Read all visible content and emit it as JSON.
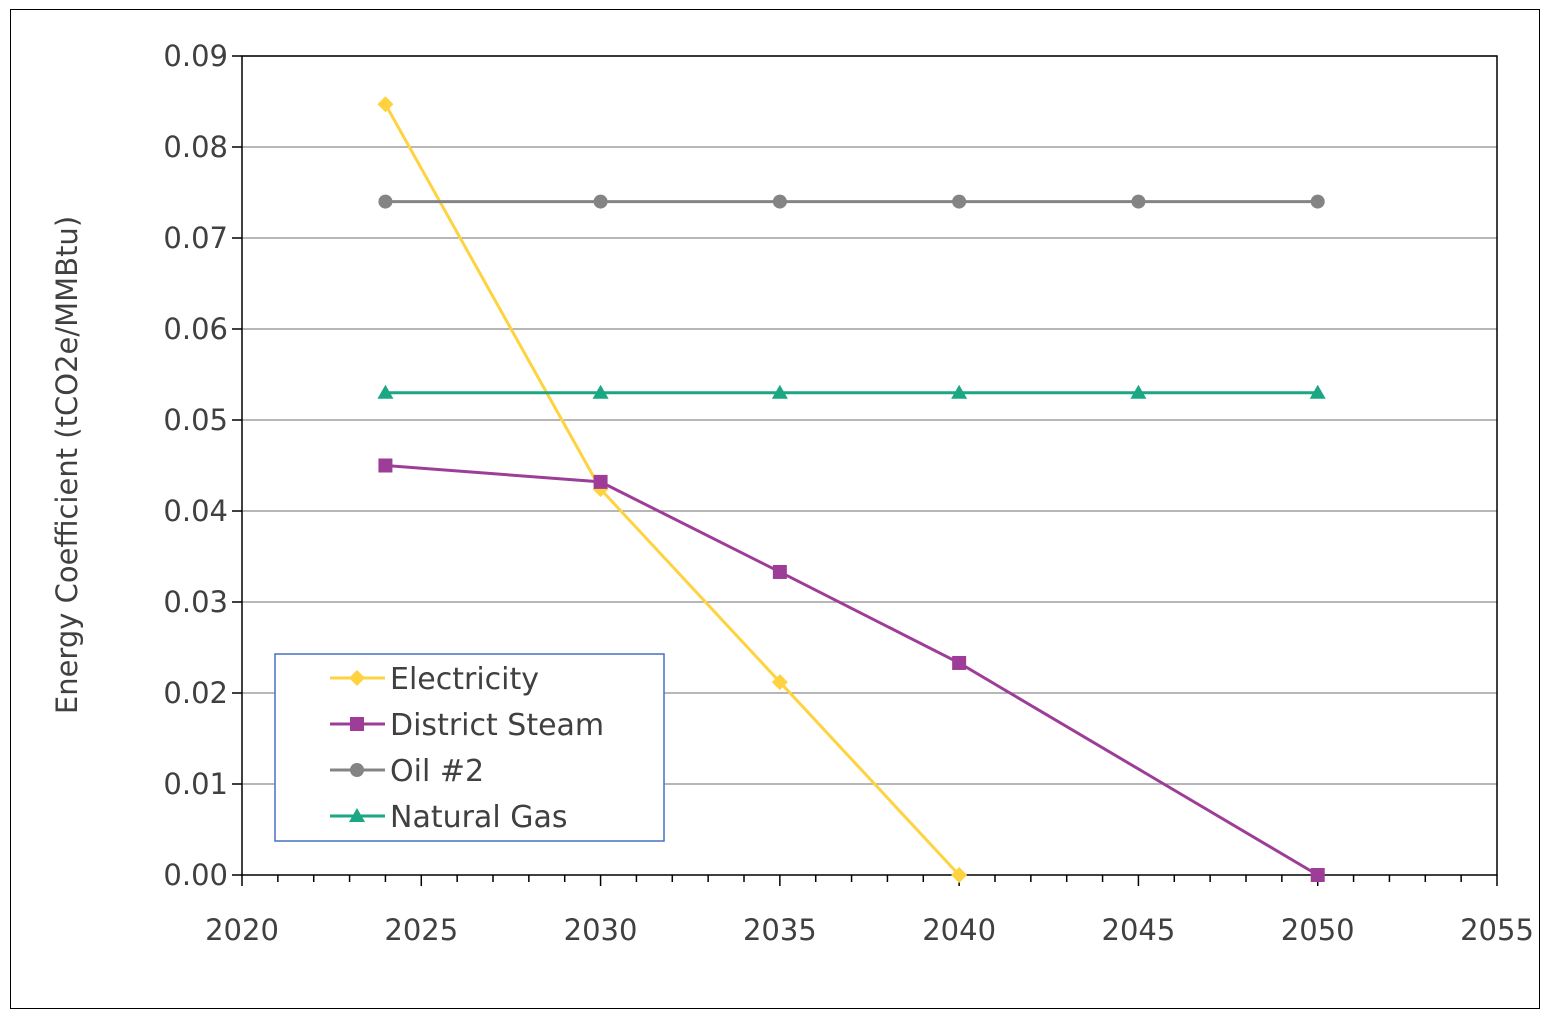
{
  "chart_data": {
    "type": "line",
    "title": "",
    "xlabel": "",
    "ylabel": "Energy Coefficient (tCO2e/MMBtu)",
    "xlim": [
      2020,
      2055
    ],
    "ylim": [
      0,
      0.09
    ],
    "x_ticks": [
      "2020",
      "2025",
      "2030",
      "2035",
      "2040",
      "2045",
      "2050",
      "2055"
    ],
    "y_ticks": [
      "0.00",
      "0.01",
      "0.02",
      "0.03",
      "0.04",
      "0.05",
      "0.06",
      "0.07",
      "0.08",
      "0.09"
    ],
    "grid": "horizontal",
    "legend_position": "bottom-left",
    "series": [
      {
        "name": "Electricity",
        "color": "#FFD23F",
        "marker": "diamond",
        "x": [
          2024,
          2030,
          2035,
          2040
        ],
        "y": [
          0.0847,
          0.0424,
          0.0212,
          0.0
        ]
      },
      {
        "name": "District Steam",
        "color": "#9E3D98",
        "marker": "square",
        "x": [
          2024,
          2030,
          2035,
          2040,
          2050
        ],
        "y": [
          0.045,
          0.0432,
          0.0333,
          0.0233,
          0.0
        ]
      },
      {
        "name": "Oil #2",
        "color": "#848484",
        "marker": "circle",
        "x": [
          2024,
          2030,
          2035,
          2040,
          2045,
          2050
        ],
        "y": [
          0.074,
          0.074,
          0.074,
          0.074,
          0.074,
          0.074
        ]
      },
      {
        "name": "Natural Gas",
        "color": "#1BA784",
        "marker": "triangle",
        "x": [
          2024,
          2030,
          2035,
          2040,
          2045,
          2050
        ],
        "y": [
          0.053,
          0.053,
          0.053,
          0.053,
          0.053,
          0.053
        ]
      }
    ]
  }
}
